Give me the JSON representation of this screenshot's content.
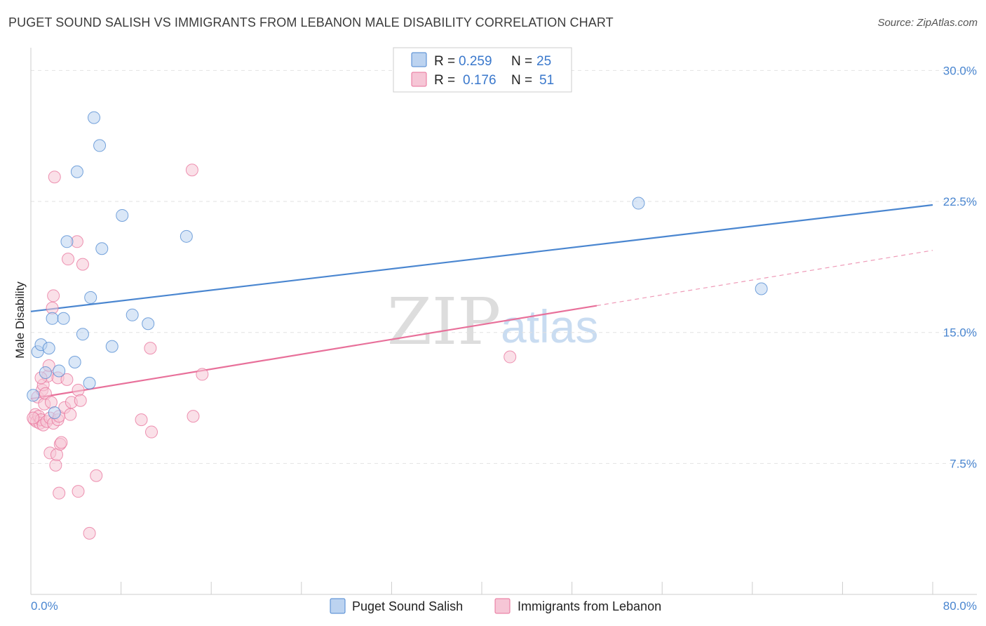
{
  "title": "PUGET SOUND SALISH VS IMMIGRANTS FROM LEBANON MALE DISABILITY CORRELATION CHART",
  "source": "Source: ZipAtlas.com",
  "watermark": {
    "part1": "ZIP",
    "part2": "atlas"
  },
  "chart_data": {
    "type": "scatter",
    "xlabel": "",
    "ylabel": "Male Disability",
    "xlim": [
      0,
      80
    ],
    "ylim": [
      0,
      30.9
    ],
    "x_tick_labels": {
      "left": "0.0%",
      "right": "80.0%"
    },
    "y_ticks": [
      {
        "value": 7.5,
        "label": "7.5%"
      },
      {
        "value": 15.0,
        "label": "15.0%"
      },
      {
        "value": 22.5,
        "label": "22.5%"
      },
      {
        "value": 30.0,
        "label": "30.0%"
      }
    ],
    "legend": {
      "r_label": "R =",
      "n_label": "N =",
      "entries": [
        {
          "name": "Puget Sound Salish",
          "r": "0.259",
          "n": "25"
        },
        {
          "name": "Immigrants from Lebanon",
          "r": "0.176",
          "n": "51"
        }
      ]
    },
    "series": [
      {
        "name": "Puget Sound Salish",
        "color": "#4a86d0",
        "fill": "#bcd3f0",
        "trend": {
          "x0": 0,
          "y0": 16.2,
          "x1": 80,
          "y1": 22.3,
          "solid_until": 80
        },
        "points": [
          [
            0.2,
            11.4
          ],
          [
            0.6,
            13.9
          ],
          [
            0.9,
            14.3
          ],
          [
            1.3,
            12.7
          ],
          [
            1.6,
            14.1
          ],
          [
            1.9,
            15.8
          ],
          [
            2.1,
            10.4
          ],
          [
            2.5,
            12.8
          ],
          [
            2.9,
            15.8
          ],
          [
            3.2,
            20.2
          ],
          [
            3.9,
            13.3
          ],
          [
            4.1,
            24.2
          ],
          [
            4.6,
            14.9
          ],
          [
            5.2,
            12.1
          ],
          [
            5.3,
            17.0
          ],
          [
            5.6,
            27.3
          ],
          [
            6.1,
            25.7
          ],
          [
            6.3,
            19.8
          ],
          [
            7.2,
            14.2
          ],
          [
            8.1,
            21.7
          ],
          [
            9.0,
            16.0
          ],
          [
            10.4,
            15.5
          ],
          [
            13.8,
            20.5
          ],
          [
            53.9,
            22.4
          ],
          [
            64.8,
            17.5
          ]
        ]
      },
      {
        "name": "Immigrants from Lebanon",
        "color": "#e8709a",
        "fill": "#f6c6d6",
        "trend": {
          "x0": 0,
          "y0": 11.2,
          "x1": 80,
          "y1": 19.7,
          "solid_until": 50.2
        },
        "points": [
          [
            0.3,
            10.0
          ],
          [
            0.4,
            10.3
          ],
          [
            0.5,
            9.9
          ],
          [
            0.6,
            11.3
          ],
          [
            0.7,
            10.2
          ],
          [
            0.8,
            9.8
          ],
          [
            0.9,
            10.0
          ],
          [
            1.0,
            11.7
          ],
          [
            1.1,
            12.0
          ],
          [
            1.1,
            9.7
          ],
          [
            1.2,
            10.9
          ],
          [
            1.3,
            11.5
          ],
          [
            1.4,
            9.9
          ],
          [
            1.5,
            12.5
          ],
          [
            1.6,
            13.1
          ],
          [
            1.7,
            10.1
          ],
          [
            1.7,
            8.1
          ],
          [
            1.8,
            11.0
          ],
          [
            1.9,
            16.4
          ],
          [
            2.0,
            9.8
          ],
          [
            2.0,
            17.1
          ],
          [
            2.1,
            23.9
          ],
          [
            2.2,
            7.4
          ],
          [
            2.3,
            8.0
          ],
          [
            2.4,
            12.4
          ],
          [
            2.4,
            10.0
          ],
          [
            2.5,
            5.8
          ],
          [
            2.5,
            10.2
          ],
          [
            2.6,
            8.6
          ],
          [
            2.7,
            8.7
          ],
          [
            3.0,
            10.7
          ],
          [
            3.2,
            12.3
          ],
          [
            3.3,
            19.2
          ],
          [
            3.5,
            10.3
          ],
          [
            3.6,
            11.0
          ],
          [
            4.1,
            20.2
          ],
          [
            4.2,
            11.7
          ],
          [
            4.2,
            5.9
          ],
          [
            4.4,
            11.1
          ],
          [
            4.6,
            18.9
          ],
          [
            5.2,
            3.5
          ],
          [
            5.8,
            6.8
          ],
          [
            9.8,
            10.0
          ],
          [
            10.6,
            14.1
          ],
          [
            10.7,
            9.3
          ],
          [
            14.3,
            24.3
          ],
          [
            14.4,
            10.2
          ],
          [
            15.2,
            12.6
          ],
          [
            42.5,
            13.6
          ],
          [
            0.2,
            10.1
          ],
          [
            0.9,
            12.4
          ]
        ]
      }
    ]
  }
}
